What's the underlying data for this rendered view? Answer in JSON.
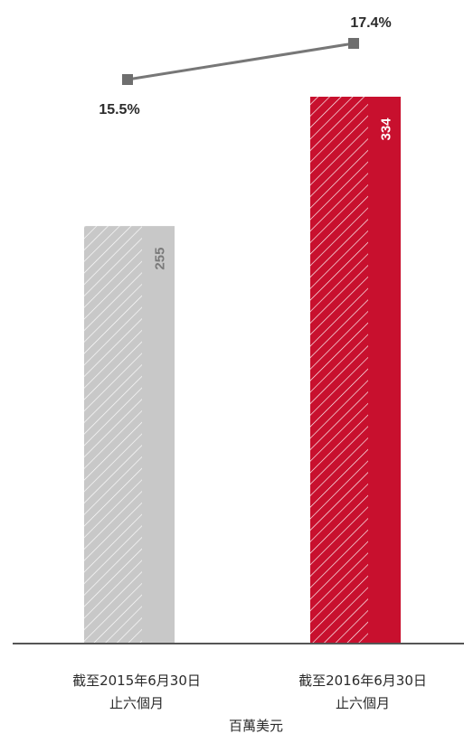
{
  "chart_data": {
    "type": "bar",
    "categories": [
      [
        "截至2015年6月30日",
        "止六個月"
      ],
      [
        "截至2016年6月30日",
        "止六個月"
      ]
    ],
    "values": [
      255,
      334
    ],
    "value_labels": [
      "255",
      "334"
    ],
    "line": {
      "values": [
        15.5,
        17.4
      ],
      "labels": [
        "15.5%",
        "17.4%"
      ]
    },
    "unit_label": "百萬美元",
    "bar_colors": [
      "#c8c8c8",
      "#c8102e"
    ],
    "value_label_colors": [
      "#7a7a7a",
      "#ffffff"
    ],
    "line_color": "#777777",
    "marker_color": "#6e6e6e",
    "axis_color": "#555555",
    "ylim": [
      0,
      334
    ],
    "grid": false
  }
}
